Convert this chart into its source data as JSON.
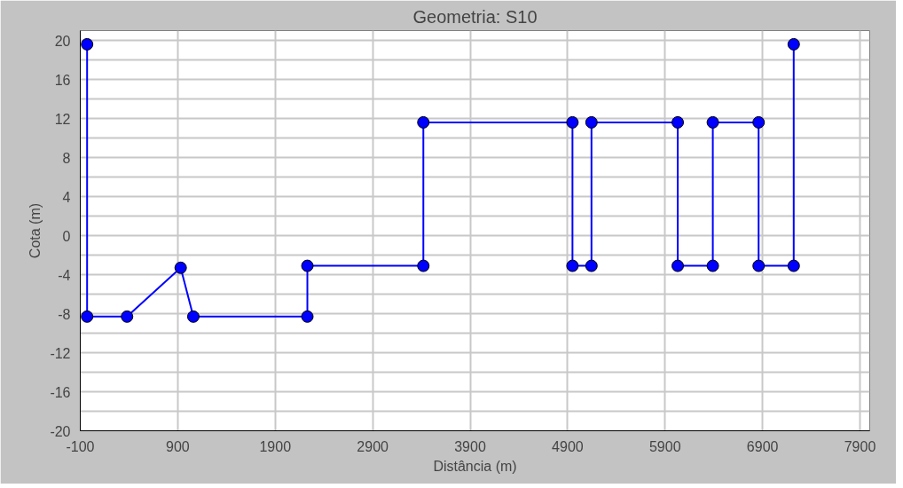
{
  "chart_data": {
    "type": "line",
    "title": "Geometria: S10",
    "xlabel": "Distância (m)",
    "ylabel": "Cota (m)",
    "x": [
      -30,
      -30,
      380,
      930,
      1060,
      2230,
      2230,
      3420,
      3420,
      4950,
      4950,
      5145,
      5145,
      6030,
      6030,
      6390,
      6390,
      6860,
      6860,
      7220,
      7220
    ],
    "series": [
      {
        "color": "#0000ff",
        "values": [
          19.6,
          -8.3,
          -8.3,
          -3.3,
          -8.3,
          -8.3,
          -3.1,
          -3.1,
          11.6,
          11.6,
          -3.1,
          -3.1,
          11.6,
          11.6,
          -3.1,
          -3.1,
          11.6,
          11.6,
          -3.1,
          -3.1,
          19.6
        ]
      }
    ],
    "xlim": [
      -100,
      8000
    ],
    "ylim": [
      -20,
      21
    ],
    "xticks": [
      -100,
      900,
      1900,
      2900,
      3900,
      4900,
      5900,
      6900,
      7900
    ],
    "yticks": [
      -20,
      {
        "value": -18,
        "label": null
      },
      -16,
      {
        "value": -14,
        "label": null
      },
      -12,
      {
        "value": -10,
        "label": null
      },
      -8,
      {
        "value": -6,
        "label": null
      },
      -4,
      {
        "value": -2,
        "label": null
      },
      0,
      {
        "value": 2,
        "label": null
      },
      4,
      {
        "value": 6,
        "label": null
      },
      8,
      {
        "value": 10,
        "label": null
      },
      12,
      {
        "value": 14,
        "label": null
      },
      16,
      {
        "value": 18,
        "label": null
      },
      20
    ],
    "grid": true,
    "marker": "circle",
    "line_style": "solid"
  }
}
